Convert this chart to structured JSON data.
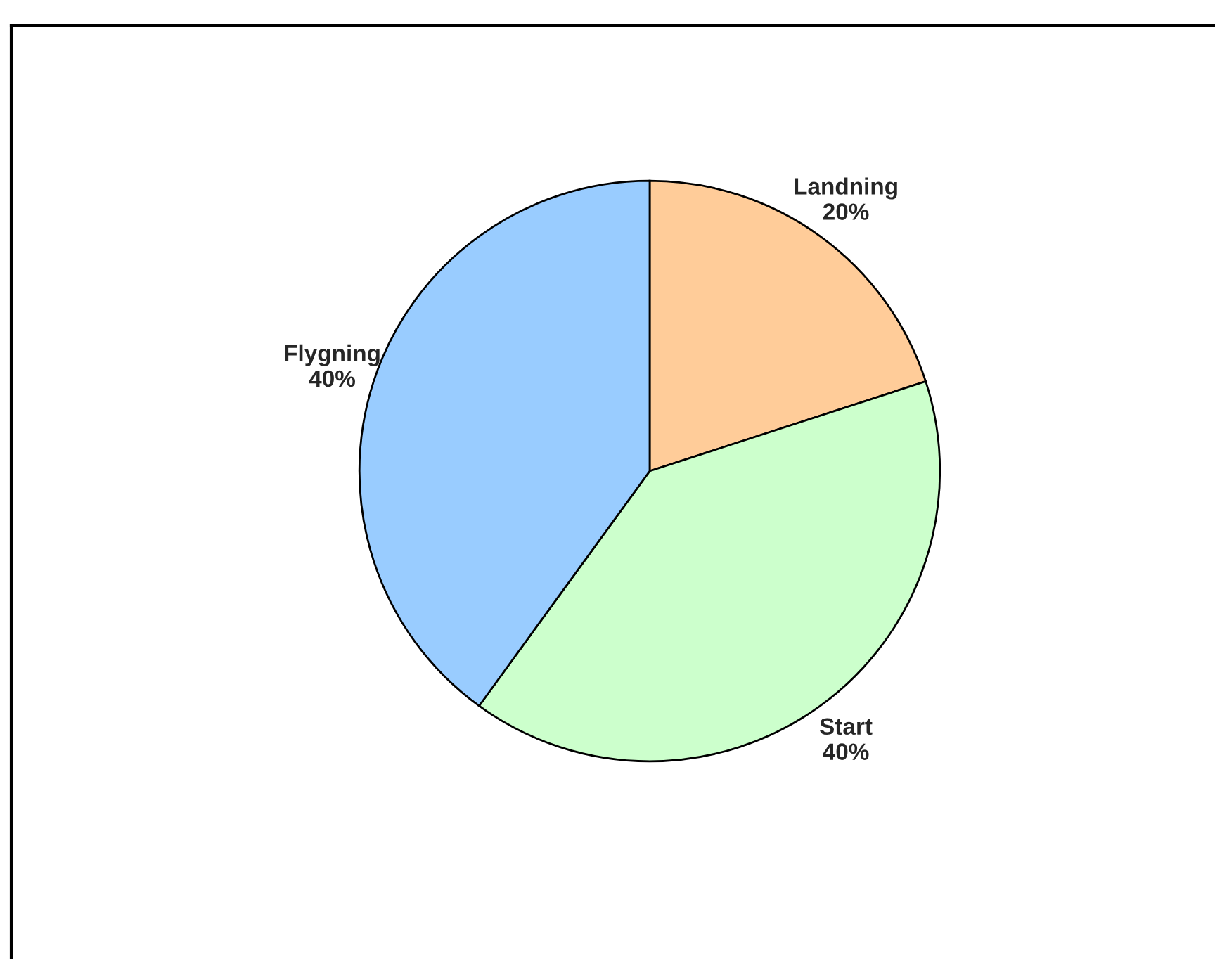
{
  "chart_data": {
    "type": "pie",
    "categories": [
      "Landning",
      "Start",
      "Flygning"
    ],
    "values": [
      20,
      40,
      40
    ],
    "colors": [
      "#ffcc99",
      "#ccffcc",
      "#99ccff"
    ],
    "value_labels": [
      "20%",
      "40%",
      "40%"
    ]
  }
}
